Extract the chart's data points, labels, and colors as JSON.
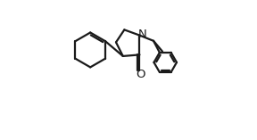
{
  "bg_color": "#ffffff",
  "line_color": "#1a1a1a",
  "lw": 1.6,
  "figsize": [
    2.88,
    1.57
  ],
  "dpi": 100
}
